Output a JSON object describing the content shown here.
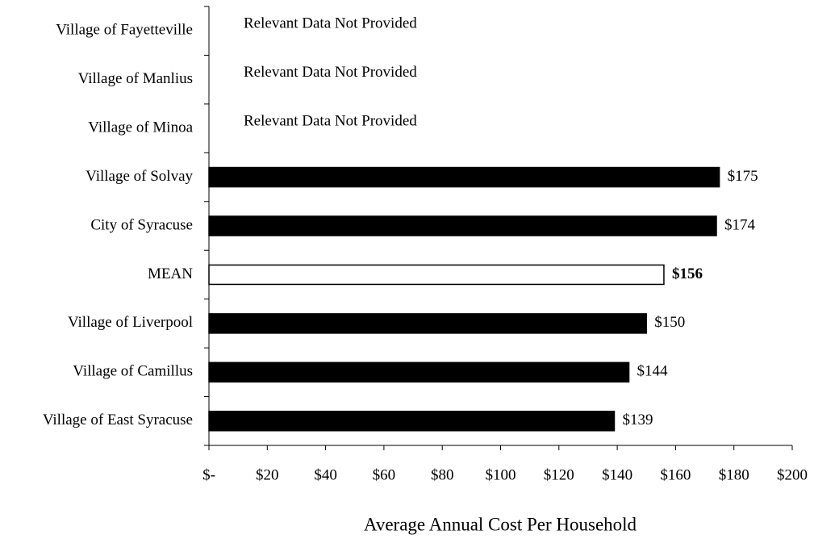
{
  "chart_data": {
    "type": "hbar",
    "categories": [
      "Village of Fayetteville",
      "Village of Manlius",
      "Village of Minoa",
      "Village of Solvay",
      "City of Syracuse",
      "MEAN",
      "Village of Liverpool",
      "Village of Camillus",
      "Village of East Syracuse"
    ],
    "values": [
      null,
      null,
      null,
      175,
      174,
      156,
      150,
      144,
      139
    ],
    "value_labels": [
      null,
      null,
      null,
      "$175",
      "$174",
      "$156",
      "$150",
      "$144",
      "$139"
    ],
    "colors": [
      "#000000",
      "#000000",
      "#000000",
      "#000000",
      "#000000",
      "#ffffff",
      "#000000",
      "#000000",
      "#000000"
    ],
    "value_label_bold": [
      false,
      false,
      false,
      false,
      false,
      true,
      false,
      false,
      false
    ],
    "annotations": [
      {
        "text": "Relevant Data Not Provided",
        "category": "Village of Fayetteville"
      },
      {
        "text": "Relevant Data Not Provided",
        "category": "Village of Manlius"
      },
      {
        "text": "Relevant Data Not Provided",
        "category": "Village of Minoa"
      }
    ],
    "xlabel": "Average Annual Cost Per Household",
    "xlim": [
      0,
      200
    ],
    "xticks": [
      {
        "value": 0,
        "label": "$-"
      },
      {
        "value": 20,
        "label": "$20"
      },
      {
        "value": 40,
        "label": "$40"
      },
      {
        "value": 60,
        "label": "$60"
      },
      {
        "value": 80,
        "label": "$80"
      },
      {
        "value": 100,
        "label": "$100"
      },
      {
        "value": 120,
        "label": "$120"
      },
      {
        "value": 140,
        "label": "$140"
      },
      {
        "value": 160,
        "label": "$160"
      },
      {
        "value": 180,
        "label": "$180"
      },
      {
        "value": 200,
        "label": "$200"
      }
    ],
    "grid": false
  }
}
